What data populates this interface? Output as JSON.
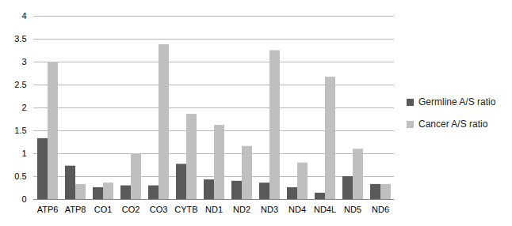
{
  "chart_data": {
    "type": "bar",
    "categories": [
      "ATP6",
      "ATP8",
      "CO1",
      "CO2",
      "CO3",
      "CYTB",
      "ND1",
      "ND2",
      "ND3",
      "ND4",
      "ND4L",
      "ND5",
      "ND6"
    ],
    "series": [
      {
        "name": "Germline A/S ratio",
        "color": "#595959",
        "values": [
          1.33,
          0.73,
          0.26,
          0.3,
          0.3,
          0.77,
          0.43,
          0.4,
          0.36,
          0.26,
          0.14,
          0.5,
          0.33
        ]
      },
      {
        "name": "Cancer A/S ratio",
        "color": "#bfbfbf",
        "values": [
          3.0,
          0.33,
          0.36,
          1.0,
          3.38,
          1.86,
          1.62,
          1.16,
          3.25,
          0.8,
          2.67,
          1.1,
          0.33
        ]
      }
    ],
    "ylim": [
      0,
      4
    ],
    "yticks": [
      0,
      0.5,
      1,
      1.5,
      2,
      2.5,
      3,
      3.5,
      4
    ],
    "grid": true,
    "legend": "right"
  }
}
